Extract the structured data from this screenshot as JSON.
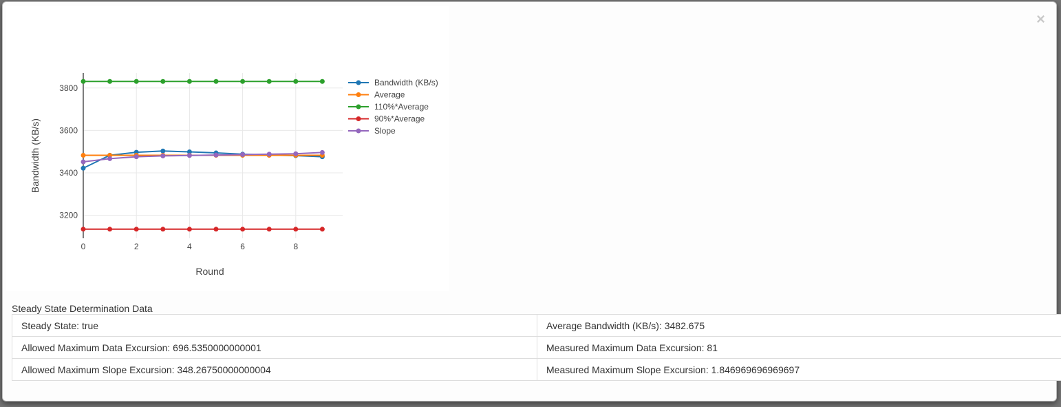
{
  "modal": {
    "close_label": "×"
  },
  "chart_data": {
    "type": "line",
    "title": "",
    "xlabel": "Round",
    "ylabel": "Bandwidth (KB/s)",
    "x": [
      0,
      1,
      2,
      3,
      4,
      5,
      6,
      7,
      8,
      9
    ],
    "series": [
      {
        "name": "Bandwidth (KB/s)",
        "color": "#1f77b4",
        "values": [
          3422,
          3483,
          3497,
          3503,
          3499,
          3494,
          3488,
          3484,
          3481,
          3476
        ]
      },
      {
        "name": "Average",
        "color": "#ff7f0e",
        "values": [
          3482.675,
          3482.675,
          3482.675,
          3482.675,
          3482.675,
          3482.675,
          3482.675,
          3482.675,
          3482.675,
          3482.675
        ]
      },
      {
        "name": "110%*Average",
        "color": "#2ca02c",
        "values": [
          3830.9425,
          3830.9425,
          3830.9425,
          3830.9425,
          3830.9425,
          3830.9425,
          3830.9425,
          3830.9425,
          3830.9425,
          3830.9425
        ]
      },
      {
        "name": "90%*Average",
        "color": "#d62728",
        "values": [
          3134.4075,
          3134.4075,
          3134.4075,
          3134.4075,
          3134.4075,
          3134.4075,
          3134.4075,
          3134.4075,
          3134.4075,
          3134.4075
        ]
      },
      {
        "name": "Slope",
        "color": "#9467bd",
        "values": [
          3452,
          3467,
          3476,
          3480,
          3482,
          3484,
          3486,
          3488,
          3490,
          3496
        ]
      }
    ],
    "yticks": [
      3200,
      3400,
      3600,
      3800
    ],
    "xticks": [
      0,
      2,
      4,
      6,
      8
    ],
    "ylim": [
      3095,
      3875
    ],
    "xlim": [
      0,
      9.77
    ],
    "grid": true,
    "legend_position": "right"
  },
  "table": {
    "title": "Steady State Determination Data",
    "rows": [
      [
        "Steady State: true",
        "Average Bandwidth (KB/s): 3482.675"
      ],
      [
        "Allowed Maximum Data Excursion: 696.5350000000001",
        "Measured Maximum Data Excursion: 81"
      ],
      [
        "Allowed Maximum Slope Excursion: 348.26750000000004",
        "Measured Maximum Slope Excursion: 1.846969696969697"
      ]
    ]
  }
}
